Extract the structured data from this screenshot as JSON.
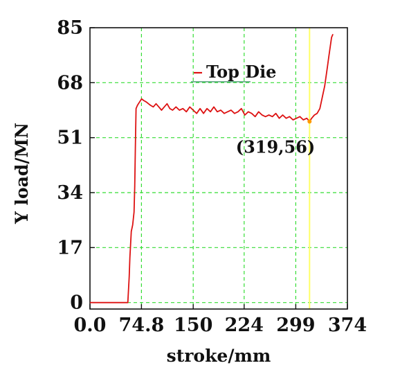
{
  "chart_data": {
    "type": "line",
    "xlabel": "stroke/mm",
    "ylabel": "Y load/MN",
    "xlim": [
      0,
      374
    ],
    "ylim": [
      -2,
      85
    ],
    "x_ticks": [
      0,
      74.8,
      150,
      224,
      299,
      374
    ],
    "x_tick_labels": [
      "0.0",
      "74.8",
      "150",
      "224",
      "299",
      "374"
    ],
    "y_ticks": [
      0,
      17,
      34,
      51,
      68,
      85
    ],
    "y_tick_labels": [
      "0",
      "17",
      "34",
      "51",
      "68",
      "85"
    ],
    "grid": true,
    "grid_color": "#33dd33",
    "legend_position": "top-center",
    "series": [
      {
        "name": "Top Die",
        "color": "#dd1111",
        "x": [
          0,
          55,
          57,
          58,
          59,
          60,
          62,
          64,
          65,
          66,
          67,
          69,
          72,
          75,
          78,
          82,
          85,
          88,
          92,
          96,
          100,
          104,
          108,
          112,
          116,
          120,
          125,
          130,
          135,
          140,
          145,
          150,
          155,
          160,
          165,
          170,
          175,
          180,
          185,
          190,
          195,
          200,
          205,
          210,
          215,
          220,
          225,
          230,
          235,
          240,
          245,
          250,
          255,
          260,
          265,
          270,
          275,
          280,
          285,
          290,
          295,
          300,
          305,
          310,
          315,
          319,
          322,
          326,
          330,
          334,
          338,
          341,
          343,
          345,
          347,
          349,
          351,
          353
        ],
        "y": [
          0,
          0,
          8,
          14,
          18,
          22,
          24,
          28,
          36,
          48,
          60,
          61,
          62,
          63,
          62.5,
          62,
          61.5,
          61,
          60.5,
          61.5,
          60.5,
          59.5,
          60.5,
          61.5,
          60,
          59.5,
          60.5,
          59.5,
          60,
          59,
          60.5,
          59.5,
          58.5,
          60,
          58.5,
          60,
          59,
          60.5,
          59,
          59.5,
          58.5,
          59,
          59.5,
          58.5,
          59,
          60,
          58,
          59,
          58.5,
          57.5,
          59,
          58,
          57.5,
          58,
          57.5,
          58.5,
          57,
          58,
          57,
          57.5,
          56.5,
          57,
          57.5,
          56.5,
          57,
          56,
          57,
          58,
          58.5,
          60,
          64,
          67,
          70,
          73,
          76,
          79,
          82,
          83
        ]
      }
    ],
    "annotations": [
      {
        "text": "(319,56)",
        "x": 319,
        "y": 56,
        "marker_color": "#ff9900"
      }
    ],
    "vline": {
      "x": 319,
      "color": "#ffff66"
    }
  }
}
